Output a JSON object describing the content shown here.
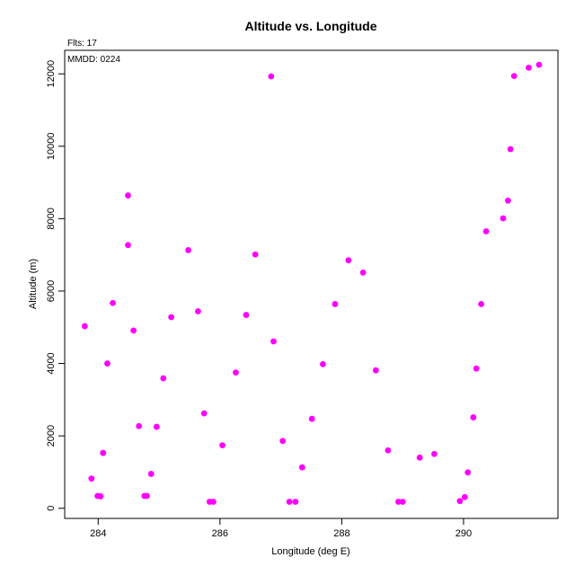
{
  "chart_data": {
    "type": "scatter",
    "title": "Altitude vs. Longitude",
    "xlabel": "Longitude (deg E)",
    "ylabel": "Altitude (m)",
    "xlim": [
      283.45,
      291.55
    ],
    "ylim": [
      -280,
      12650
    ],
    "xticks": [
      284,
      286,
      288,
      290
    ],
    "yticks": [
      0,
      2000,
      4000,
      6000,
      8000,
      10000,
      12000
    ],
    "annotations": [
      "Flts: 17",
      "MMDD: 0224"
    ],
    "point_color": "#ff00ff",
    "grid": false,
    "series": [
      {
        "x": [
          283.78,
          283.89,
          283.99,
          284.04,
          284.08,
          284.15,
          284.24,
          284.49,
          284.49,
          284.58,
          284.67,
          284.76,
          284.8,
          284.87,
          284.96,
          285.07,
          285.2,
          285.48,
          285.64,
          285.74,
          285.83,
          285.89,
          286.04,
          286.26,
          286.43,
          286.58,
          286.84,
          286.88,
          287.03,
          287.14,
          287.24,
          287.35,
          287.51,
          287.69,
          287.89,
          288.11,
          288.35,
          288.56,
          288.76,
          288.93,
          289.0,
          289.28,
          289.52,
          289.94,
          290.02,
          290.07,
          290.16,
          290.21,
          290.29,
          290.37,
          290.65,
          290.73,
          290.77,
          290.83,
          291.07,
          291.24
        ],
        "y": [
          5030,
          820,
          340,
          330,
          1530,
          4000,
          5670,
          8640,
          7270,
          4910,
          2270,
          340,
          340,
          950,
          2250,
          3590,
          5280,
          7130,
          5440,
          2620,
          180,
          180,
          1740,
          3750,
          5340,
          7010,
          11930,
          4610,
          1860,
          180,
          180,
          1130,
          2470,
          3980,
          5640,
          6850,
          6510,
          3810,
          1600,
          180,
          180,
          1400,
          1500,
          200,
          310,
          990,
          2510,
          3860,
          5640,
          7650,
          8010,
          8500,
          9920,
          11940,
          12170,
          12250
        ]
      }
    ]
  }
}
